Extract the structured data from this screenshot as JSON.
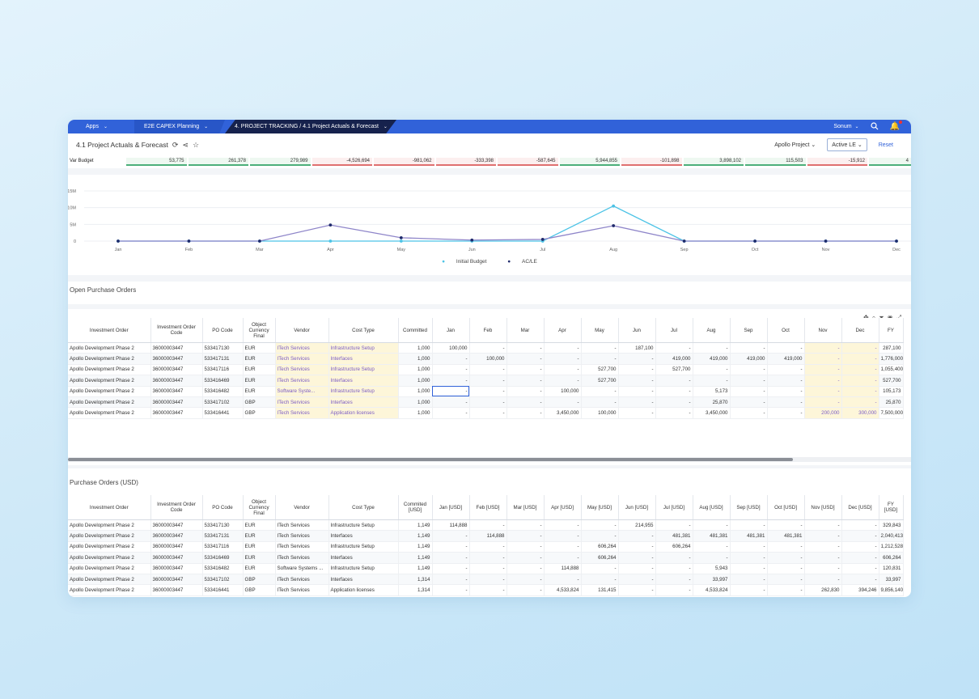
{
  "topbar": {
    "apps": "Apps",
    "e2e": "E2E CAPEX Planning",
    "active_crumb": "4. PROJECT TRACKING / 4.1 Project Actuals & Forecast",
    "user": "Sonum"
  },
  "titlebar": {
    "title": "4.1 Project Actuals & Forecast",
    "project_filter": "Apollo Project",
    "version_filter": "Active LE",
    "reset": "Reset"
  },
  "var_budget": {
    "label": "Var Budget",
    "values": [
      "53,775",
      "261,378",
      "279,989",
      "-4,526,694",
      "-981,062",
      "-333,398",
      "-587,645",
      "5,944,855",
      "-101,898",
      "3,898,102",
      "115,503",
      "-15,912",
      "4"
    ]
  },
  "chart_data": {
    "type": "line",
    "categories": [
      "Jan",
      "Feb",
      "Mar",
      "Apr",
      "May",
      "Jun",
      "Jul",
      "Aug",
      "Sep",
      "Oct",
      "Nov",
      "Dec"
    ],
    "yticks": [
      "15M",
      "10M",
      "5M",
      "0"
    ],
    "ylim": [
      0,
      15000000
    ],
    "series": [
      {
        "name": "Initial Budget",
        "color": "#4cc3e6",
        "values": [
          0,
          0,
          0,
          0,
          0,
          0,
          0,
          10500000,
          0,
          0,
          0,
          0
        ]
      },
      {
        "name": "AC/LE",
        "color": "#8e85c9",
        "marker": "#1f2a6b",
        "values": [
          0,
          0,
          0,
          4800000,
          1000000,
          300000,
          500000,
          4600000,
          0,
          0,
          0,
          0
        ]
      }
    ],
    "legend": "bottom-center"
  },
  "open_po": {
    "title": "Open Purchase Orders",
    "headers": [
      "Investment Order",
      "Investment Order Code",
      "PO Code",
      "Object Currency Final",
      "Vendor",
      "Cost Type",
      "Committed",
      "Jan",
      "Feb",
      "Mar",
      "Apr",
      "May",
      "Jun",
      "Jul",
      "Aug",
      "Sep",
      "Oct",
      "Nov",
      "Dec",
      "FY"
    ],
    "rows": [
      [
        "Apollo Development Phase 2",
        "36000003447",
        "533417130",
        "EUR",
        "ITech Services",
        "Infrastructure Setup",
        "1,000",
        "100,000",
        "-",
        "-",
        "-",
        "-",
        "187,100",
        "-",
        "-",
        "-",
        "-",
        "-",
        "-",
        "287,100"
      ],
      [
        "Apollo Development Phase 2",
        "36000003447",
        "533417131",
        "EUR",
        "ITech Services",
        "Interfaces",
        "1,000",
        "-",
        "100,000",
        "-",
        "-",
        "-",
        "-",
        "419,000",
        "419,000",
        "419,000",
        "419,000",
        "-",
        "-",
        "1,776,000"
      ],
      [
        "Apollo Development Phase 2",
        "36000003447",
        "533417116",
        "EUR",
        "ITech Services",
        "Infrastructure Setup",
        "1,000",
        "-",
        "-",
        "-",
        "-",
        "527,700",
        "-",
        "527,700",
        "-",
        "-",
        "-",
        "-",
        "-",
        "1,055,400"
      ],
      [
        "Apollo Development Phase 2",
        "36000003447",
        "533416469",
        "EUR",
        "ITech Services",
        "Interfaces",
        "1,000",
        "-",
        "-",
        "-",
        "-",
        "527,700",
        "-",
        "-",
        "-",
        "-",
        "-",
        "-",
        "-",
        "527,700"
      ],
      [
        "Apollo Development Phase 2",
        "36000003447",
        "533416482",
        "EUR",
        "Software Syste...",
        "Infrastructure Setup",
        "1,000",
        "-",
        "-",
        "-",
        "100,000",
        "-",
        "-",
        "-",
        "5,173",
        "-",
        "-",
        "-",
        "-",
        "105,173"
      ],
      [
        "Apollo Development Phase 2",
        "36000003447",
        "533417102",
        "GBP",
        "ITech Services",
        "Interfaces",
        "1,000",
        "-",
        "-",
        "-",
        "-",
        "-",
        "-",
        "-",
        "25,870",
        "-",
        "-",
        "-",
        "-",
        "25,870"
      ],
      [
        "Apollo Development Phase 2",
        "36000003447",
        "533416441",
        "GBP",
        "ITech Services",
        "Application licenses",
        "1,000",
        "-",
        "-",
        "-",
        "3,450,000",
        "100,000",
        "-",
        "-",
        "3,450,000",
        "-",
        "-",
        "200,000",
        "300,000",
        "7,500,000"
      ]
    ]
  },
  "po_usd": {
    "title": "Purchase Orders (USD)",
    "headers": [
      "Investment Order",
      "Investment Order Code",
      "PO Code",
      "Object Currency Final",
      "Vendor",
      "Cost Type",
      "Commited [USD]",
      "Jan [USD]",
      "Feb [USD]",
      "Mar [USD]",
      "Apr [USD]",
      "May [USD]",
      "Jun [USD]",
      "Jul [USD]",
      "Aug [USD]",
      "Sep [USD]",
      "Oct [USD]",
      "Nov [USD]",
      "Dec [USD]",
      "FY [USD]"
    ],
    "rows": [
      [
        "Apollo Development Phase 2",
        "36000003447",
        "533417130",
        "EUR",
        "ITech Services",
        "Infrastructure Setup",
        "1,149",
        "114,888",
        "-",
        "-",
        "-",
        "-",
        "214,955",
        "-",
        "-",
        "-",
        "-",
        "-",
        "-",
        "329,843"
      ],
      [
        "Apollo Development Phase 2",
        "36000003447",
        "533417131",
        "EUR",
        "ITech Services",
        "Interfaces",
        "1,149",
        "-",
        "114,888",
        "-",
        "-",
        "-",
        "-",
        "481,381",
        "481,381",
        "481,381",
        "481,381",
        "-",
        "-",
        "2,040,413"
      ],
      [
        "Apollo Development Phase 2",
        "36000003447",
        "533417116",
        "EUR",
        "ITech Services",
        "Infrastructure Setup",
        "1,149",
        "-",
        "-",
        "-",
        "-",
        "606,264",
        "-",
        "606,264",
        "-",
        "-",
        "-",
        "-",
        "-",
        "1,212,528"
      ],
      [
        "Apollo Development Phase 2",
        "36000003447",
        "533416469",
        "EUR",
        "ITech Services",
        "Interfaces",
        "1,149",
        "-",
        "-",
        "-",
        "-",
        "606,264",
        "-",
        "-",
        "-",
        "-",
        "-",
        "-",
        "-",
        "606,264"
      ],
      [
        "Apollo Development Phase 2",
        "36000003447",
        "533416482",
        "EUR",
        "Software Systems ...",
        "Infrastructure Setup",
        "1,149",
        "-",
        "-",
        "-",
        "114,888",
        "-",
        "-",
        "-",
        "5,943",
        "-",
        "-",
        "-",
        "-",
        "120,831"
      ],
      [
        "Apollo Development Phase 2",
        "36000003447",
        "533417102",
        "GBP",
        "ITech Services",
        "Interfaces",
        "1,314",
        "-",
        "-",
        "-",
        "-",
        "-",
        "-",
        "-",
        "33,997",
        "-",
        "-",
        "-",
        "-",
        "33,997"
      ],
      [
        "Apollo Development Phase 2",
        "36000003447",
        "533416441",
        "GBP",
        "ITech Services",
        "Application licenses",
        "1,314",
        "-",
        "-",
        "-",
        "4,533,824",
        "131,415",
        "-",
        "-",
        "4,533,824",
        "-",
        "-",
        "262,830",
        "394,246",
        "9,856,140"
      ]
    ]
  }
}
